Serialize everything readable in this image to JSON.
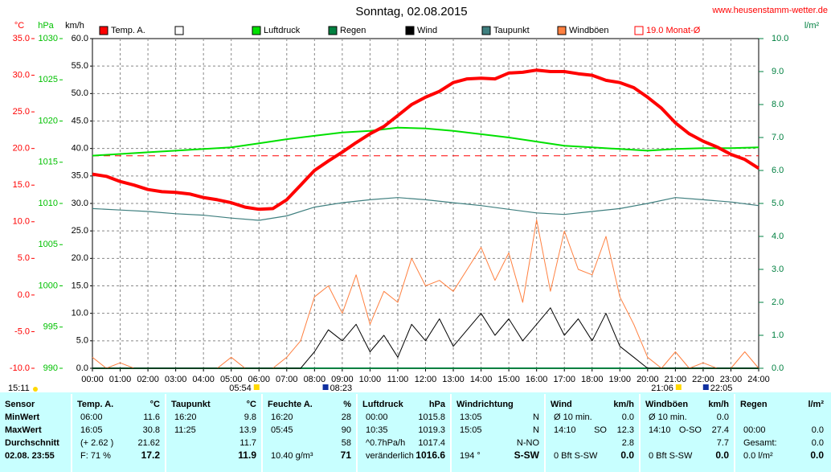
{
  "chart_data": {
    "type": "line",
    "title": "Sonntag, 02.08.2015",
    "website": "www.heusenstamm-wetter.de",
    "current_time": "15:11",
    "xlim": [
      0,
      24
    ],
    "xticks": [
      {
        "value": 0,
        "label": "00:00"
      },
      {
        "value": 1,
        "label": "01:00"
      },
      {
        "value": 2,
        "label": "02:00"
      },
      {
        "value": 3,
        "label": "03:00"
      },
      {
        "value": 4,
        "label": "04:00"
      },
      {
        "value": 5,
        "label": "05:00"
      },
      {
        "value": 6,
        "label": "06:00"
      },
      {
        "value": 7,
        "label": "07:00"
      },
      {
        "value": 8,
        "label": "08:00"
      },
      {
        "value": 9,
        "label": "09:00"
      },
      {
        "value": 10,
        "label": "10:00"
      },
      {
        "value": 11,
        "label": "11:00"
      },
      {
        "value": 12,
        "label": "12:00"
      },
      {
        "value": 13,
        "label": "13:00"
      },
      {
        "value": 14,
        "label": "14:00"
      },
      {
        "value": 15,
        "label": "15:00"
      },
      {
        "value": 16,
        "label": "16:00"
      },
      {
        "value": 17,
        "label": "17:00"
      },
      {
        "value": 18,
        "label": "18:00"
      },
      {
        "value": 19,
        "label": "19:00"
      },
      {
        "value": 20,
        "label": "20:00"
      },
      {
        "value": 21,
        "label": "21:00"
      },
      {
        "value": 22,
        "label": "22:00"
      },
      {
        "value": 23,
        "label": "23:00"
      },
      {
        "value": 24,
        "label": "24:00"
      }
    ],
    "axes": {
      "temp": {
        "unit": "°C",
        "color": "#ff0000",
        "lim": [
          -10,
          35
        ],
        "ticks": [
          {
            "value": 35,
            "label": "35.0"
          },
          {
            "value": 30,
            "label": "30.0"
          },
          {
            "value": 25,
            "label": "25.0"
          },
          {
            "value": 20,
            "label": "20.0"
          },
          {
            "value": 15,
            "label": "15.0"
          },
          {
            "value": 10,
            "label": "10.0"
          },
          {
            "value": 5,
            "label": "5.0"
          },
          {
            "value": 0,
            "label": "0.0"
          },
          {
            "value": -5,
            "label": "-5.0"
          },
          {
            "value": -10,
            "label": "-10.0"
          }
        ]
      },
      "pressure": {
        "unit": "hPa",
        "color": "#00c000",
        "lim": [
          990,
          1030
        ],
        "ticks": [
          1030,
          1025,
          1020,
          1015,
          1010,
          1005,
          1000,
          995,
          990
        ]
      },
      "wind": {
        "unit": "km/h",
        "color": "#000000",
        "lim": [
          0,
          60
        ],
        "ticks": [
          {
            "value": 60,
            "label": "60.0"
          },
          {
            "value": 55,
            "label": "55.0"
          },
          {
            "value": 50,
            "label": "50.0"
          },
          {
            "value": 45,
            "label": "45.0"
          },
          {
            "value": 40,
            "label": "40.0"
          },
          {
            "value": 35,
            "label": "35.0"
          },
          {
            "value": 30,
            "label": "30.0"
          },
          {
            "value": 25,
            "label": "25.0"
          },
          {
            "value": 20,
            "label": "20.0"
          },
          {
            "value": 15,
            "label": "15.0"
          },
          {
            "value": 10,
            "label": "10.0"
          },
          {
            "value": 5,
            "label": "5.0"
          },
          {
            "value": 0,
            "label": "0.0"
          }
        ]
      },
      "rain": {
        "unit": "l/m²",
        "color": "#008040",
        "lim": [
          0,
          10
        ],
        "ticks": [
          {
            "value": 10,
            "label": "10.0"
          },
          {
            "value": 9,
            "label": "9.0"
          },
          {
            "value": 8,
            "label": "8.0"
          },
          {
            "value": 7,
            "label": "7.0"
          },
          {
            "value": 6,
            "label": "6.0"
          },
          {
            "value": 5,
            "label": "5.0"
          },
          {
            "value": 4,
            "label": "4.0"
          },
          {
            "value": 3,
            "label": "3.0"
          },
          {
            "value": 2,
            "label": "2.0"
          },
          {
            "value": 1,
            "label": "1.0"
          },
          {
            "value": 0,
            "label": "0.0"
          }
        ]
      }
    },
    "grid": true,
    "monthly_avg": {
      "value": 19.0,
      "label": "19.0 Monat-Ø",
      "color": "#ff0000",
      "axis": "temp"
    },
    "series": [
      {
        "name": "Temp. A.",
        "color": "#ff0000",
        "axis": "temp",
        "width": 4,
        "x": [
          0,
          0.5,
          1,
          1.5,
          2,
          2.5,
          3,
          3.5,
          4,
          4.5,
          5,
          5.5,
          6,
          6.5,
          7,
          7.5,
          8,
          8.5,
          9,
          9.5,
          10,
          10.5,
          11,
          11.5,
          12,
          12.5,
          13,
          13.5,
          14,
          14.5,
          15,
          15.5,
          16,
          16.5,
          17,
          17.5,
          18,
          18.5,
          19,
          19.5,
          20,
          20.5,
          21,
          21.5,
          22,
          22.5,
          23,
          23.5,
          24
        ],
        "values": [
          16.5,
          16.2,
          15.5,
          15.0,
          14.4,
          14.1,
          14.0,
          13.8,
          13.3,
          13.0,
          12.6,
          12.0,
          11.7,
          11.8,
          13.0,
          15.0,
          17.0,
          18.3,
          19.5,
          20.8,
          22.0,
          23.0,
          24.5,
          26.0,
          27.0,
          27.8,
          29.0,
          29.5,
          29.6,
          29.5,
          30.3,
          30.4,
          30.7,
          30.5,
          30.5,
          30.2,
          30.0,
          29.3,
          29.0,
          28.3,
          27.0,
          25.5,
          23.5,
          22.0,
          21.0,
          20.2,
          19.2,
          18.5,
          17.3
        ]
      },
      {
        "name": "Luftdruck",
        "color": "#00e000",
        "axis": "pressure",
        "width": 2,
        "x": [
          0,
          1,
          2,
          3,
          4,
          5,
          6,
          7,
          8,
          9,
          10,
          11,
          12,
          13,
          14,
          15,
          16,
          17,
          18,
          19,
          20,
          21,
          22,
          23,
          24
        ],
        "values": [
          1015.8,
          1016.0,
          1016.2,
          1016.4,
          1016.6,
          1016.8,
          1017.3,
          1017.8,
          1018.2,
          1018.6,
          1018.8,
          1019.2,
          1019.1,
          1018.8,
          1018.4,
          1018.0,
          1017.5,
          1017.0,
          1016.8,
          1016.6,
          1016.4,
          1016.6,
          1016.7,
          1016.7,
          1016.8
        ]
      },
      {
        "name": "Regen",
        "color": "#008040",
        "axis": "rain",
        "width": 2,
        "x": [
          0,
          1,
          2,
          3,
          4,
          5,
          6,
          7,
          8,
          9,
          10,
          11,
          12,
          13,
          14,
          15,
          16,
          17,
          18,
          19,
          20,
          21,
          22,
          23,
          24
        ],
        "values": [
          0,
          0,
          0,
          0,
          0,
          0,
          0,
          0,
          0,
          0,
          0,
          0,
          0,
          0,
          0,
          0,
          0,
          0,
          0,
          0,
          0,
          0,
          0,
          0,
          0
        ]
      },
      {
        "name": "Wind",
        "color": "#000000",
        "axis": "wind",
        "width": 1,
        "x": [
          0,
          0.5,
          1,
          1.5,
          2,
          2.5,
          3,
          3.5,
          4,
          4.5,
          5,
          5.5,
          6,
          6.5,
          7,
          7.5,
          8,
          8.5,
          9,
          9.5,
          10,
          10.5,
          11,
          11.5,
          12,
          12.5,
          13,
          13.5,
          14,
          14.5,
          15,
          15.5,
          16,
          16.5,
          17,
          17.5,
          18,
          18.5,
          19,
          19.5,
          20,
          20.5,
          21,
          21.5,
          22,
          22.5,
          23,
          23.5,
          24
        ],
        "values": [
          0,
          0,
          0,
          0,
          0,
          0,
          0,
          0,
          0,
          0,
          0,
          0,
          0,
          0,
          0,
          0,
          3,
          7,
          5,
          8,
          3,
          6,
          2,
          8,
          5,
          9,
          4,
          7,
          10,
          6,
          9,
          5,
          8,
          11,
          6,
          9,
          5,
          10,
          4,
          2,
          0,
          0,
          0,
          0,
          0,
          0,
          0,
          0,
          0
        ]
      },
      {
        "name": "Taupunkt",
        "color": "#3f7f7f",
        "axis": "temp",
        "width": 1.2,
        "x": [
          0,
          1,
          2,
          3,
          4,
          5,
          6,
          7,
          8,
          9,
          10,
          11,
          12,
          13,
          14,
          15,
          16,
          17,
          18,
          19,
          20,
          21,
          22,
          23,
          24
        ],
        "values": [
          11.8,
          11.6,
          11.4,
          11.1,
          10.9,
          10.5,
          10.2,
          10.8,
          12.0,
          12.6,
          13.0,
          13.3,
          13.0,
          12.6,
          12.2,
          11.7,
          11.2,
          11.0,
          11.4,
          11.8,
          12.5,
          13.3,
          13.0,
          12.7,
          12.2
        ]
      },
      {
        "name": "Windböen",
        "color": "#ff8040",
        "axis": "wind",
        "width": 1,
        "x": [
          0,
          0.5,
          1,
          1.5,
          2,
          2.5,
          3,
          3.5,
          4,
          4.5,
          5,
          5.5,
          6,
          6.5,
          7,
          7.5,
          8,
          8.5,
          9,
          9.5,
          10,
          10.5,
          11,
          11.5,
          12,
          12.5,
          13,
          13.5,
          14,
          14.5,
          15,
          15.5,
          16,
          16.5,
          17,
          17.5,
          18,
          18.5,
          19,
          19.5,
          20,
          20.5,
          21,
          21.5,
          22,
          22.5,
          23,
          23.5,
          24
        ],
        "values": [
          2,
          0,
          1,
          0,
          0,
          0,
          0,
          0,
          0,
          0,
          2,
          0,
          0,
          0,
          2,
          5,
          13,
          15,
          10,
          17,
          8,
          14,
          12,
          20,
          15,
          16,
          14,
          18,
          22,
          16,
          21,
          12,
          27,
          14,
          25,
          18,
          17,
          24,
          13,
          8,
          2,
          0,
          3,
          0,
          1,
          0,
          0,
          3,
          0
        ]
      }
    ],
    "markers": [
      {
        "x": 5.9,
        "label": "05:54",
        "kind": "sunrise"
      },
      {
        "x": 8.383,
        "label": "08:23",
        "kind": "moon"
      },
      {
        "x": 21.1,
        "label": "21:06",
        "kind": "sunset"
      },
      {
        "x": 22.083,
        "label": "22:05",
        "kind": "moon"
      }
    ]
  },
  "table": {
    "columns": [
      {
        "title": "Sensor"
      },
      {
        "title": "Temp. A.",
        "unit": "°C"
      },
      {
        "title": "Taupunkt",
        "unit": "°C"
      },
      {
        "title": "Feuchte A.",
        "unit": "%"
      },
      {
        "title": "Luftdruck",
        "unit": "hPa"
      },
      {
        "title": "Windrichtung"
      },
      {
        "title": "Wind",
        "unit": "km/h"
      },
      {
        "title": "Windböen",
        "unit": "km/h"
      },
      {
        "title": "Regen",
        "unit": "l/m²"
      }
    ],
    "rows": [
      [
        "MinWert",
        {
          "l": "06:00",
          "r": "11.6"
        },
        {
          "l": "16:20",
          "r": "9.8"
        },
        {
          "l": "16:20",
          "r": "28"
        },
        {
          "l": "00:00",
          "r": "1015.8"
        },
        {
          "l": "13:05",
          "r": "N"
        },
        {
          "l": "Ø 10 min.",
          "r": "0.0"
        },
        {
          "l": "Ø 10 min.",
          "r": "0.0"
        },
        null
      ],
      [
        "MaxWert",
        {
          "l": "16:05",
          "r": "30.8"
        },
        {
          "l": "11:25",
          "r": "13.9"
        },
        {
          "l": "05:45",
          "r": "90"
        },
        {
          "l": "10:35",
          "r": "1019.3"
        },
        {
          "l": "15:05",
          "r": "N"
        },
        {
          "l": "14:10",
          "m": "SO",
          "r": "12.3"
        },
        {
          "l": "14:10",
          "m": "O-SO",
          "r": "27.4"
        },
        {
          "l": "00:00",
          "r": "0.0"
        }
      ],
      [
        "Durchschnitt",
        {
          "l": "(+ 2.62 )",
          "r": "21.62"
        },
        {
          "r": "11.7"
        },
        {
          "r": "58"
        },
        {
          "l": "^0.7hPa/h",
          "r": "1017.4"
        },
        {
          "r": "N-NO"
        },
        {
          "r": "2.8"
        },
        {
          "r": "7.7"
        },
        {
          "l": "Gesamt:",
          "r": "0.0"
        }
      ],
      [
        "02.08. 23:55",
        {
          "l": "F: 71 %",
          "r": "17.2"
        },
        {
          "r": "11.9"
        },
        {
          "l": "10.40 g/m³",
          "r": "71"
        },
        {
          "l": "veränderlich",
          "r": "1016.6"
        },
        {
          "l": "194 °",
          "r": "S-SW"
        },
        {
          "l": "0 Bft S-SW",
          "r": "0.0"
        },
        {
          "l": "0 Bft S-SW",
          "r": "0.0"
        },
        {
          "l": "0.0 l/m²",
          "r": "0.0"
        }
      ]
    ]
  }
}
